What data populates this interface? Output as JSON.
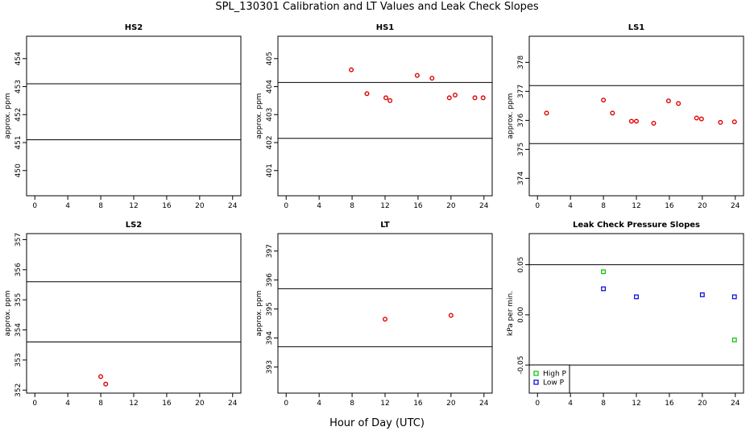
{
  "figure": {
    "title": "SPL_130301  Calibration and LT Values and Leak Check Slopes",
    "xlabel": "Hour of Day (UTC)"
  },
  "colors": {
    "cal_points": "#e00000",
    "high_p": "#00c000",
    "low_p": "#0000d0",
    "lines": "#000000"
  },
  "chart_data": [
    {
      "id": "HS2",
      "type": "scatter",
      "title": "HS2",
      "ylabel": "approx. ppm",
      "xlim": [
        -1,
        25
      ],
      "ylim": [
        449.1,
        454.8
      ],
      "xticks": [
        0,
        4,
        8,
        12,
        16,
        20,
        24
      ],
      "yticks": [
        450,
        451,
        452,
        453,
        454
      ],
      "hlines": [
        451.1,
        453.1
      ],
      "series": []
    },
    {
      "id": "HS1",
      "type": "scatter",
      "title": "HS1",
      "ylabel": "approx. ppm",
      "xlim": [
        -1,
        25
      ],
      "ylim": [
        400.1,
        405.8
      ],
      "xticks": [
        0,
        4,
        8,
        12,
        16,
        20,
        24
      ],
      "yticks": [
        401,
        402,
        403,
        404,
        405
      ],
      "hlines": [
        402.15,
        404.15
      ],
      "series": [
        {
          "name": "cal",
          "color_key": "cal_points",
          "marker": "circle",
          "x": [
            7.9,
            9.8,
            12.1,
            12.6,
            15.9,
            17.7,
            19.8,
            20.5,
            22.9,
            23.9
          ],
          "y": [
            404.6,
            403.75,
            403.6,
            403.5,
            404.4,
            404.3,
            403.6,
            403.7,
            403.6,
            403.6
          ]
        }
      ]
    },
    {
      "id": "LS1",
      "type": "scatter",
      "title": "LS1",
      "ylabel": "approx. ppm",
      "xlim": [
        -1,
        25
      ],
      "ylim": [
        373.4,
        378.9
      ],
      "xticks": [
        0,
        4,
        8,
        12,
        16,
        20,
        24
      ],
      "yticks": [
        374,
        375,
        376,
        377,
        378
      ],
      "hlines": [
        375.2,
        377.2
      ],
      "series": [
        {
          "name": "cal",
          "color_key": "cal_points",
          "marker": "circle",
          "x": [
            1.1,
            8.0,
            9.1,
            11.4,
            12.0,
            14.1,
            15.9,
            17.1,
            19.3,
            19.9,
            22.2,
            23.9
          ],
          "y": [
            376.25,
            376.7,
            376.25,
            375.97,
            375.97,
            375.9,
            376.67,
            376.58,
            376.08,
            376.05,
            375.93,
            375.95
          ]
        }
      ]
    },
    {
      "id": "LS2",
      "type": "scatter",
      "title": "LS2",
      "ylabel": "approx. ppm",
      "xlim": [
        -1,
        25
      ],
      "ylim": [
        351.9,
        357.2
      ],
      "xticks": [
        0,
        4,
        8,
        12,
        16,
        20,
        24
      ],
      "yticks": [
        352,
        353,
        354,
        355,
        356,
        357
      ],
      "hlines": [
        353.6,
        355.6
      ],
      "series": [
        {
          "name": "cal",
          "color_key": "cal_points",
          "marker": "circle",
          "x": [
            8.0,
            8.6
          ],
          "y": [
            352.45,
            352.2
          ]
        }
      ]
    },
    {
      "id": "LT",
      "type": "scatter",
      "title": "LT",
      "ylabel": "approx. ppm",
      "xlim": [
        -1,
        25
      ],
      "ylim": [
        392.1,
        397.6
      ],
      "xticks": [
        0,
        4,
        8,
        12,
        16,
        20,
        24
      ],
      "yticks": [
        393,
        394,
        395,
        396,
        397
      ],
      "hlines": [
        393.7,
        395.7
      ],
      "series": [
        {
          "name": "cal",
          "color_key": "cal_points",
          "marker": "circle",
          "x": [
            12.0,
            20.0
          ],
          "y": [
            394.65,
            394.78
          ]
        }
      ]
    },
    {
      "id": "LC",
      "type": "scatter",
      "title": "Leak Check Pressure Slopes",
      "ylabel": "kPa per min.",
      "xlim": [
        -1,
        25
      ],
      "ylim": [
        -0.078,
        0.081
      ],
      "xticks": [
        0,
        4,
        8,
        12,
        16,
        20,
        24
      ],
      "yticks": [
        -0.05,
        0.0,
        0.05
      ],
      "ytick_labels": [
        "-0.05",
        "0.00",
        "0.05"
      ],
      "hlines": [
        -0.05,
        0.05
      ],
      "legend": {
        "position": "bottom-left",
        "entries": [
          "High P",
          "Low P"
        ]
      },
      "series": [
        {
          "name": "High P",
          "color_key": "high_p",
          "marker": "square",
          "x": [
            8.0,
            23.9
          ],
          "y": [
            0.043,
            -0.025
          ]
        },
        {
          "name": "Low P",
          "color_key": "low_p",
          "marker": "square",
          "x": [
            8.0,
            12.0,
            20.0,
            23.9
          ],
          "y": [
            0.026,
            0.018,
            0.02,
            0.018
          ]
        }
      ]
    }
  ]
}
